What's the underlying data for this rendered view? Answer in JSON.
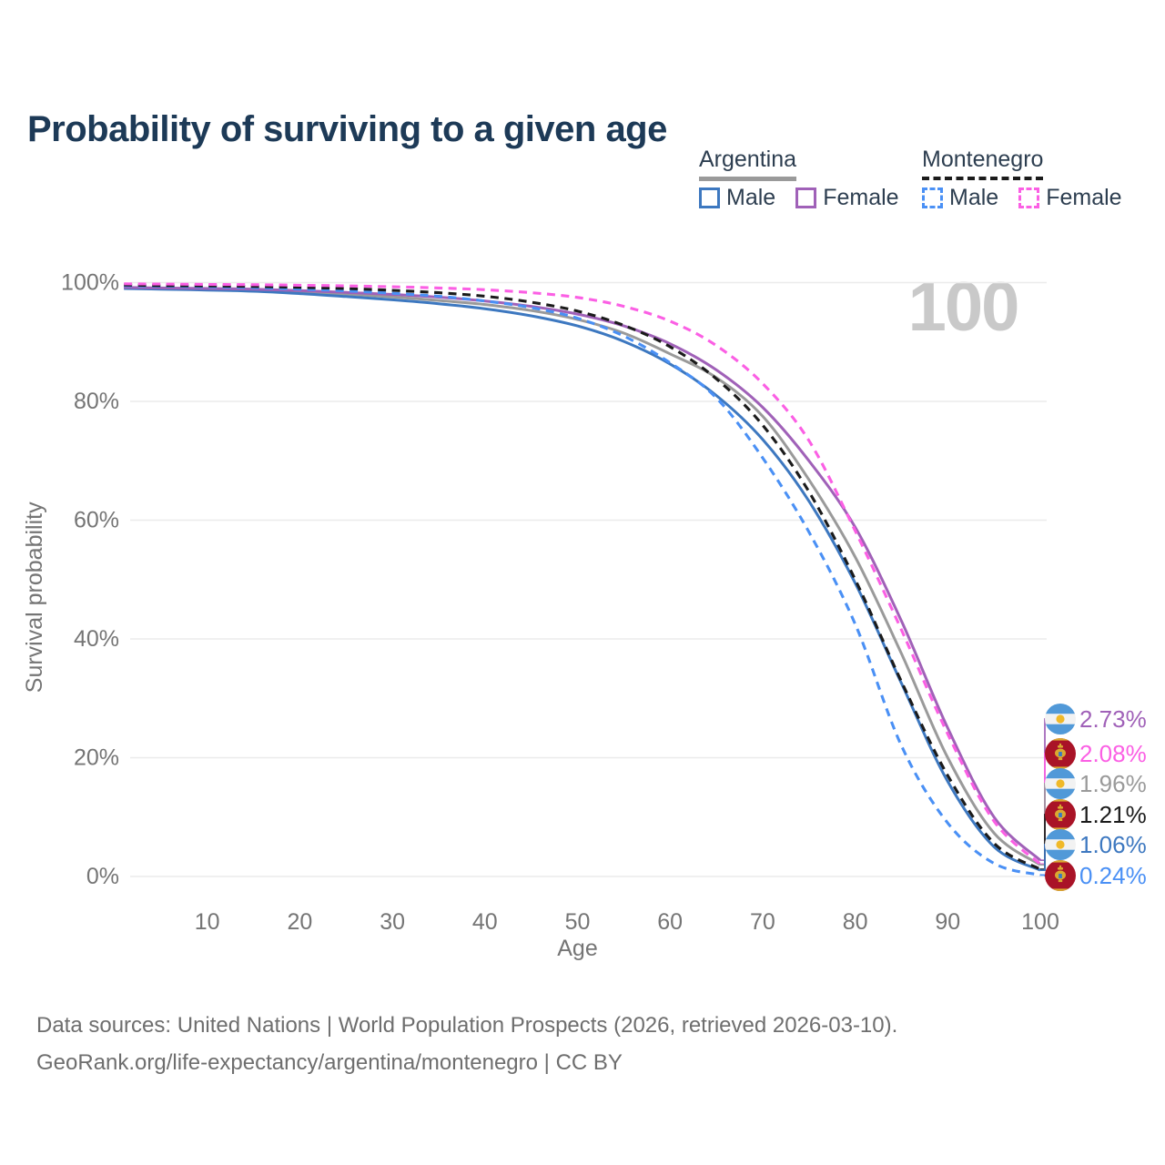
{
  "title": "Probability of surviving to a given age",
  "watermark": "100",
  "legend": {
    "groups": [
      {
        "label": "Argentina",
        "line_style": "solid",
        "underline_color": "#9a9a9a",
        "items": [
          {
            "label": "Male",
            "color": "#3d78c0"
          },
          {
            "label": "Female",
            "color": "#a061b8"
          }
        ]
      },
      {
        "label": "Montenegro",
        "line_style": "dashed",
        "underline_color": "#1b1b1b",
        "items": [
          {
            "label": "Male",
            "color": "#4a90f5"
          },
          {
            "label": "Female",
            "color": "#fb5fe4"
          }
        ]
      }
    ]
  },
  "chart_data": {
    "type": "line",
    "title": "Probability of surviving to a given age",
    "xlabel": "Age",
    "ylabel": "Survival probability",
    "xlim": [
      1,
      100
    ],
    "ylim": [
      0,
      100
    ],
    "grid": "horizontal",
    "legend_position": "top-right",
    "x": [
      1,
      5,
      10,
      15,
      20,
      25,
      30,
      35,
      40,
      45,
      50,
      55,
      60,
      65,
      70,
      75,
      80,
      85,
      90,
      95,
      100
    ],
    "xticks": [
      {
        "v": 10,
        "label": "10"
      },
      {
        "v": 20,
        "label": "20"
      },
      {
        "v": 30,
        "label": "30"
      },
      {
        "v": 40,
        "label": "40"
      },
      {
        "v": 50,
        "label": "50"
      },
      {
        "v": 60,
        "label": "60"
      },
      {
        "v": 70,
        "label": "70"
      },
      {
        "v": 80,
        "label": "80"
      },
      {
        "v": 90,
        "label": "90"
      },
      {
        "v": 100,
        "label": "100"
      }
    ],
    "yticks": [
      {
        "v": 0,
        "label": "0%"
      },
      {
        "v": 20,
        "label": "20%"
      },
      {
        "v": 40,
        "label": "40%"
      },
      {
        "v": 60,
        "label": "60%"
      },
      {
        "v": 80,
        "label": "80%"
      },
      {
        "v": 100,
        "label": "100%"
      }
    ],
    "series": [
      {
        "key": "argentina-total",
        "country": "argentina",
        "sex": "total",
        "color": "#9a9a9a",
        "dashed": false,
        "end_label": "1.96%",
        "values": [
          99.1,
          99.0,
          98.9,
          98.75,
          98.45,
          98.05,
          97.6,
          97.0,
          96.3,
          95.3,
          93.8,
          91.5,
          88.0,
          84.0,
          77.5,
          66.8,
          53.8,
          37.5,
          20.0,
          7.3,
          1.96
        ]
      },
      {
        "key": "argentina-male",
        "country": "argentina",
        "sex": "male",
        "color": "#3d78c0",
        "dashed": false,
        "end_label": "1.06%",
        "values": [
          99.0,
          98.9,
          98.75,
          98.55,
          98.15,
          97.65,
          97.1,
          96.45,
          95.6,
          94.4,
          92.7,
          90.1,
          86.3,
          81.0,
          73.6,
          63.2,
          49.4,
          32.5,
          16.0,
          5.0,
          1.06
        ]
      },
      {
        "key": "argentina-female",
        "country": "argentina",
        "sex": "female",
        "color": "#a061b8",
        "dashed": false,
        "end_label": "2.73%",
        "values": [
          99.2,
          99.1,
          99.0,
          98.9,
          98.65,
          98.35,
          98.0,
          97.55,
          96.9,
          96.0,
          94.7,
          92.7,
          89.7,
          85.3,
          79.0,
          70.0,
          58.8,
          43.0,
          25.0,
          10.0,
          2.73
        ]
      },
      {
        "key": "montenegro-male",
        "country": "montenegro",
        "sex": "male",
        "color": "#4a90f5",
        "dashed": true,
        "end_label": "0.24%",
        "values": [
          99.5,
          99.4,
          99.3,
          99.15,
          98.9,
          98.6,
          98.2,
          97.7,
          96.9,
          95.8,
          94.0,
          91.0,
          86.5,
          80.6,
          70.5,
          58.0,
          42.5,
          22.0,
          9.0,
          2.2,
          0.24
        ]
      },
      {
        "key": "montenegro-total",
        "country": "montenegro",
        "sex": "total",
        "color": "#1b1b1b",
        "dashed": true,
        "end_label": "1.21%",
        "values": [
          99.6,
          99.5,
          99.45,
          99.35,
          99.2,
          99.0,
          98.7,
          98.3,
          97.7,
          96.7,
          95.2,
          92.8,
          89.2,
          83.8,
          76.0,
          64.8,
          50.0,
          32.8,
          17.0,
          5.6,
          1.21
        ]
      },
      {
        "key": "montenegro-female",
        "country": "montenegro",
        "sex": "female",
        "color": "#fb5fe4",
        "dashed": true,
        "end_label": "2.08%",
        "values": [
          99.8,
          99.75,
          99.7,
          99.65,
          99.55,
          99.45,
          99.3,
          99.1,
          98.8,
          98.3,
          97.5,
          96.0,
          93.5,
          89.4,
          83.0,
          73.4,
          58.2,
          41.5,
          24.0,
          9.3,
          2.08
        ]
      }
    ],
    "flag_colors": {
      "argentina_band": "#5199d8",
      "argentina_white": "#f2f2f2",
      "argentina_sun": "#f0b929",
      "montenegro_red": "#a91327",
      "montenegro_gold": "#d9a930",
      "montenegro_shield": "#3a79c2"
    }
  },
  "footer": {
    "line1": "Data sources: United Nations | World Population Prospects (2026, retrieved 2026-03-10).",
    "line2": "GeoRank.org/life-expectancy/argentina/montenegro | CC BY"
  }
}
